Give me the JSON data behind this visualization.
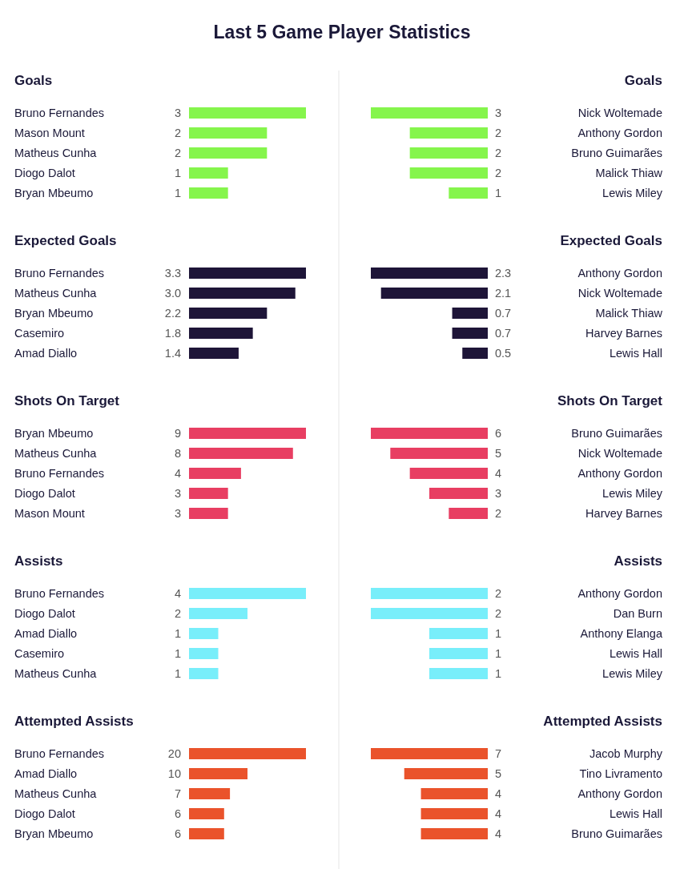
{
  "chart_data": [
    {
      "type": "bar",
      "orientation": "horizontal",
      "title": "Last 5 Game Player Statistics",
      "subtitle": "Goals",
      "categories": [
        "Bruno Fernandes",
        "Mason Mount",
        "Matheus Cunha",
        "Diogo Dalot",
        "Bryan Mbeumo"
      ],
      "values": [
        3,
        2,
        2,
        1,
        1
      ],
      "color": "#85f54c",
      "data_labels": true
    },
    {
      "type": "bar",
      "orientation": "horizontal",
      "subtitle": "Goals",
      "categories": [
        "Nick Woltemade",
        "Anthony Gordon",
        "Bruno Guimarães",
        "Malick Thiaw",
        "Lewis Miley"
      ],
      "values": [
        3,
        2,
        2,
        2,
        1
      ],
      "color": "#85f54c",
      "data_labels": true
    },
    {
      "type": "bar",
      "orientation": "horizontal",
      "subtitle": "Expected Goals",
      "categories": [
        "Bruno Fernandes",
        "Matheus Cunha",
        "Bryan Mbeumo",
        "Casemiro",
        "Amad Diallo"
      ],
      "values": [
        3.3,
        3.0,
        2.2,
        1.8,
        1.4
      ],
      "value_labels": [
        "3.3",
        "3.0",
        "2.2",
        "1.8",
        "1.4"
      ],
      "color": "#1e1538"
    },
    {
      "type": "bar",
      "orientation": "horizontal",
      "subtitle": "Expected Goals",
      "categories": [
        "Anthony Gordon",
        "Nick Woltemade",
        "Malick Thiaw",
        "Harvey Barnes",
        "Lewis Hall"
      ],
      "values": [
        2.3,
        2.1,
        0.7,
        0.7,
        0.5
      ],
      "value_labels": [
        "2.3",
        "2.1",
        "0.7",
        "0.7",
        "0.5"
      ],
      "color": "#1e1538"
    },
    {
      "type": "bar",
      "orientation": "horizontal",
      "subtitle": "Shots On Target",
      "categories": [
        "Bryan Mbeumo",
        "Matheus Cunha",
        "Bruno Fernandes",
        "Diogo Dalot",
        "Mason Mount"
      ],
      "values": [
        9,
        8,
        4,
        3,
        3
      ],
      "color": "#e83e62",
      "data_labels": true
    },
    {
      "type": "bar",
      "orientation": "horizontal",
      "subtitle": "Shots On Target",
      "categories": [
        "Bruno Guimarães",
        "Nick Woltemade",
        "Anthony Gordon",
        "Lewis Miley",
        "Harvey Barnes"
      ],
      "values": [
        6,
        5,
        4,
        3,
        2
      ],
      "color": "#e83e62",
      "data_labels": true
    },
    {
      "type": "bar",
      "orientation": "horizontal",
      "subtitle": "Assists",
      "categories": [
        "Bruno Fernandes",
        "Diogo Dalot",
        "Amad Diallo",
        "Casemiro",
        "Matheus Cunha"
      ],
      "values": [
        4,
        2,
        1,
        1,
        1
      ],
      "color": "#78eefa",
      "data_labels": true
    },
    {
      "type": "bar",
      "orientation": "horizontal",
      "subtitle": "Assists",
      "categories": [
        "Anthony Gordon",
        "Dan Burn",
        "Anthony Elanga",
        "Lewis Hall",
        "Lewis Miley"
      ],
      "values": [
        2,
        2,
        1,
        1,
        1
      ],
      "color": "#78eefa",
      "data_labels": true
    },
    {
      "type": "bar",
      "orientation": "horizontal",
      "subtitle": "Attempted Assists",
      "categories": [
        "Bruno Fernandes",
        "Amad Diallo",
        "Matheus Cunha",
        "Diogo Dalot",
        "Bryan Mbeumo"
      ],
      "values": [
        20,
        10,
        7,
        6,
        6
      ],
      "color": "#ea532b",
      "data_labels": true
    },
    {
      "type": "bar",
      "orientation": "horizontal",
      "subtitle": "Attempted Assists",
      "categories": [
        "Jacob Murphy",
        "Tino Livramento",
        "Anthony Gordon",
        "Lewis Hall",
        "Bruno Guimarães"
      ],
      "values": [
        7,
        5,
        4,
        4,
        4
      ],
      "color": "#ea532b",
      "data_labels": true
    }
  ]
}
